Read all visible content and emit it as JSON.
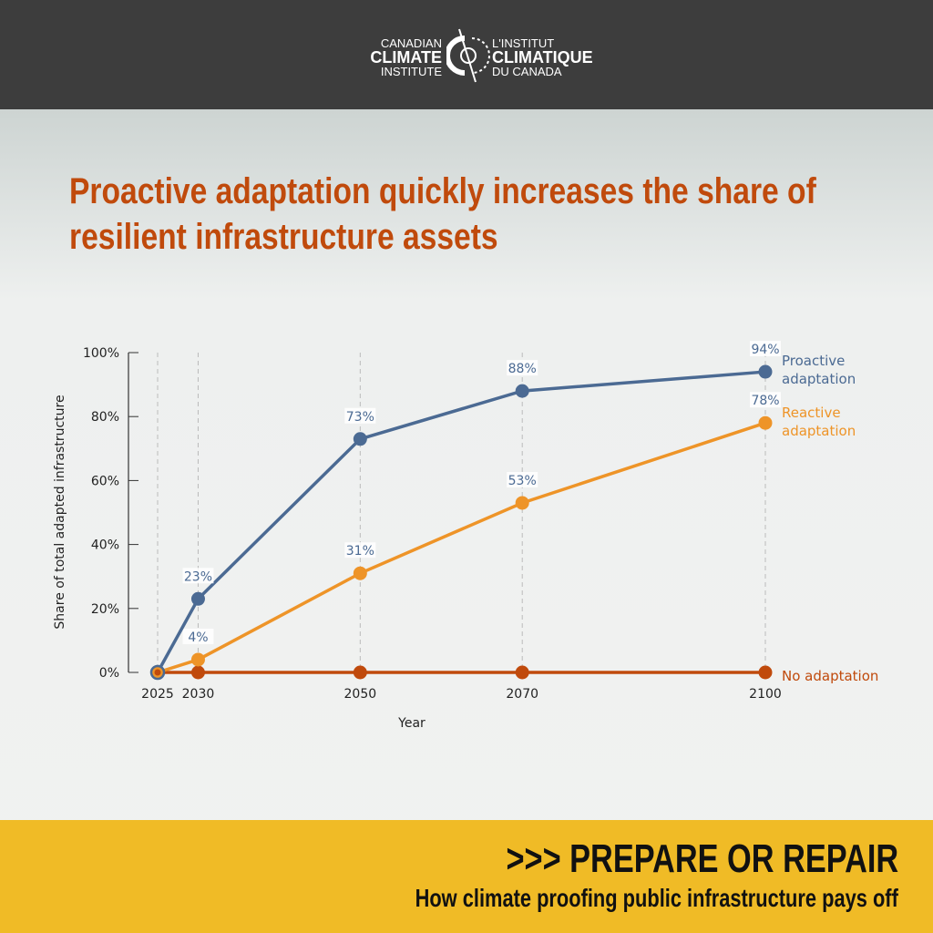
{
  "header": {
    "logo_en": [
      "CANADIAN",
      "CLIMATE",
      "INSTITUTE"
    ],
    "logo_fr": [
      "L'INSTITUT",
      "CLIMATIQUE",
      "DU CANADA"
    ]
  },
  "title": "Proactive adaptation quickly increases the share of resilient infrastructure assets",
  "footer": {
    "headline": ">>> PREPARE OR REPAIR",
    "subtitle": "How climate proofing public infrastructure pays off"
  },
  "chart_data": {
    "type": "line",
    "title": "Proactive adaptation quickly increases the share of resilient infrastructure assets",
    "xlabel": "Year",
    "ylabel": "Share of total adapted infrastructure",
    "x": [
      2025,
      2030,
      2050,
      2070,
      2100
    ],
    "xlim": [
      2025,
      2100
    ],
    "ylim": [
      0,
      100
    ],
    "yticks": [
      "0%",
      "20%",
      "40%",
      "60%",
      "80%",
      "100%"
    ],
    "grid": "vertical dashed at data years",
    "legend": "direct labels at right",
    "series": [
      {
        "name": "Proactive adaptation",
        "color": "#4b6a93",
        "values": [
          0,
          23,
          73,
          88,
          94
        ],
        "labels": [
          "",
          "23%",
          "73%",
          "88%",
          "94%"
        ]
      },
      {
        "name": "Reactive adaptation",
        "color": "#ee9428",
        "values": [
          0,
          4,
          31,
          53,
          78
        ],
        "labels": [
          "",
          "4%",
          "31%",
          "53%",
          "78%"
        ]
      },
      {
        "name": "No adaptation",
        "color": "#c04a0c",
        "values": [
          0,
          0,
          0,
          0,
          0
        ],
        "labels": [
          "",
          "",
          "",
          "",
          ""
        ]
      }
    ]
  }
}
